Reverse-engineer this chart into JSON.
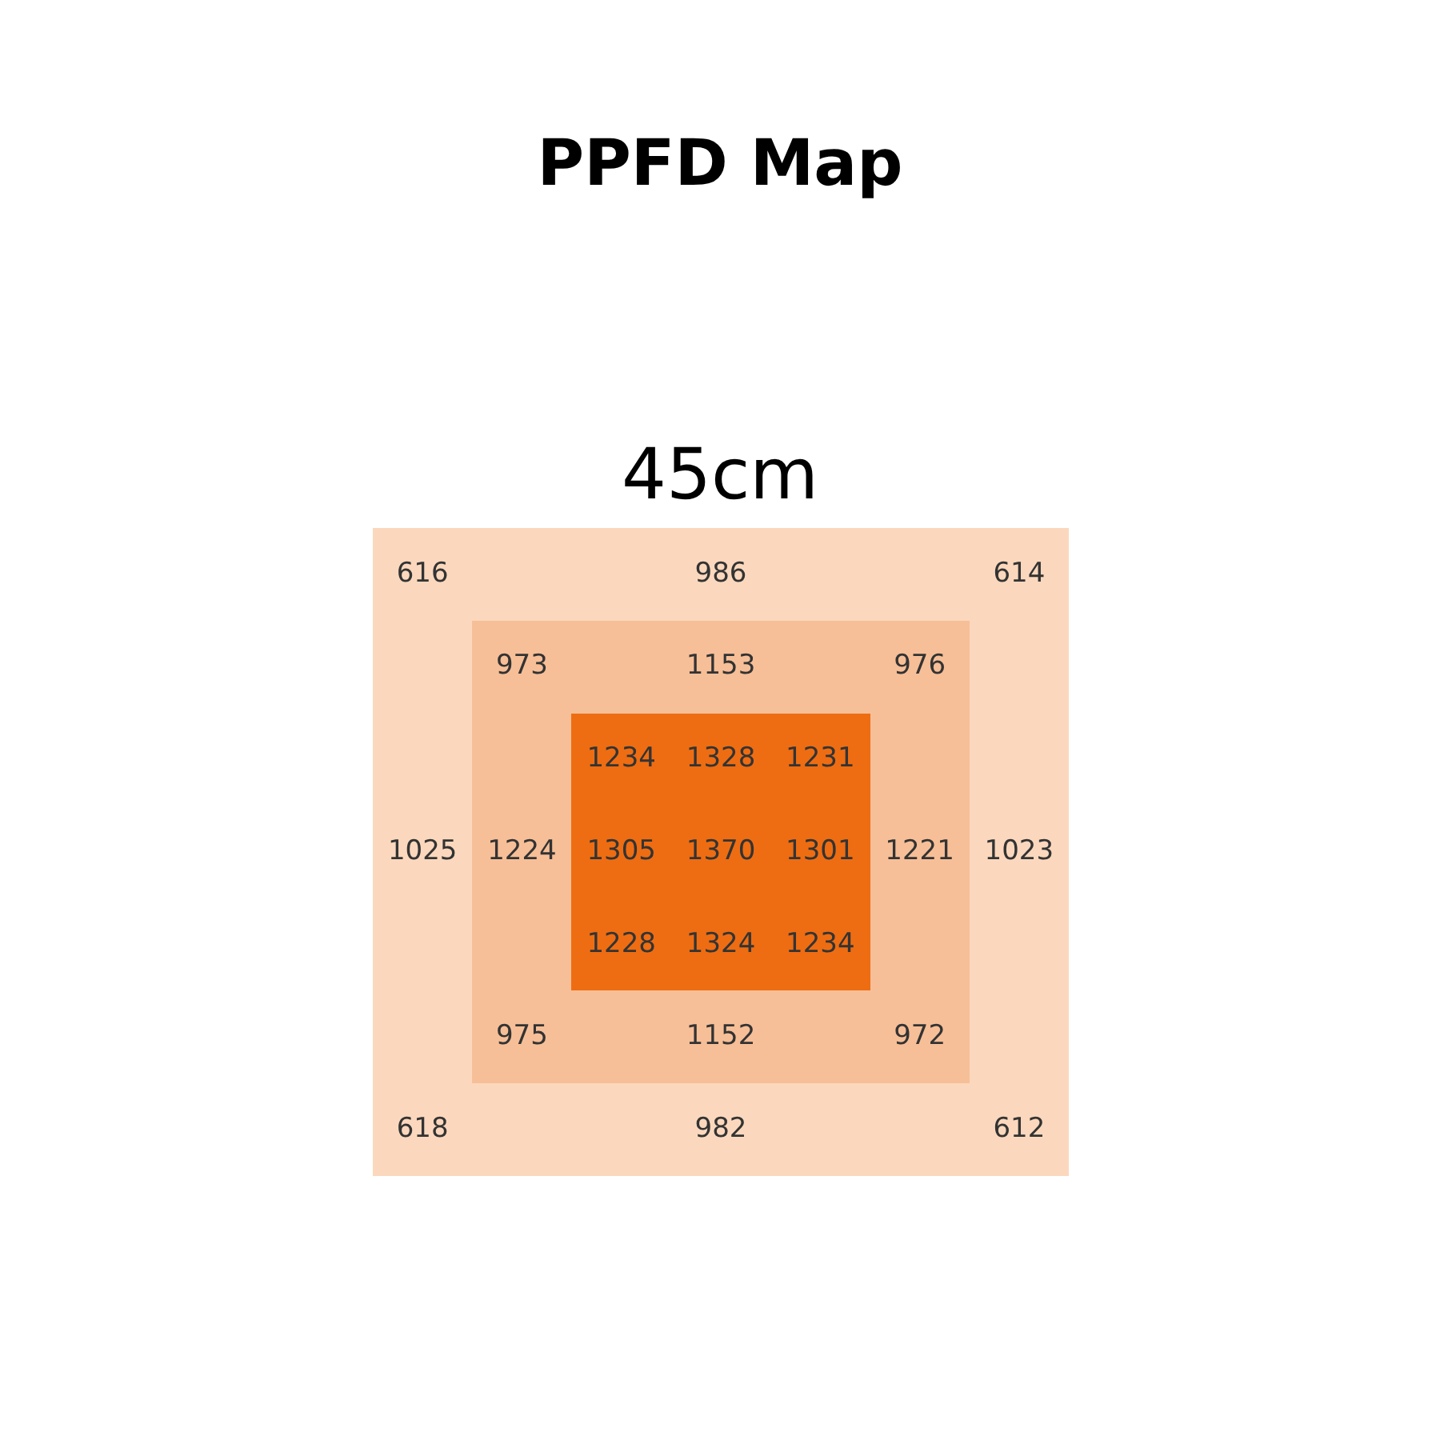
{
  "chart_data": {
    "type": "other",
    "title": "PPFD Map",
    "annotations": [
      "45cm"
    ],
    "values": [
      616,
      986,
      614,
      973,
      1153,
      976,
      1234,
      1328,
      1231,
      1025,
      1224,
      1305,
      1370,
      1301,
      1221,
      1023,
      1228,
      1324,
      1234,
      975,
      1152,
      972,
      618,
      982,
      612
    ],
    "data_labels": true
  }
}
